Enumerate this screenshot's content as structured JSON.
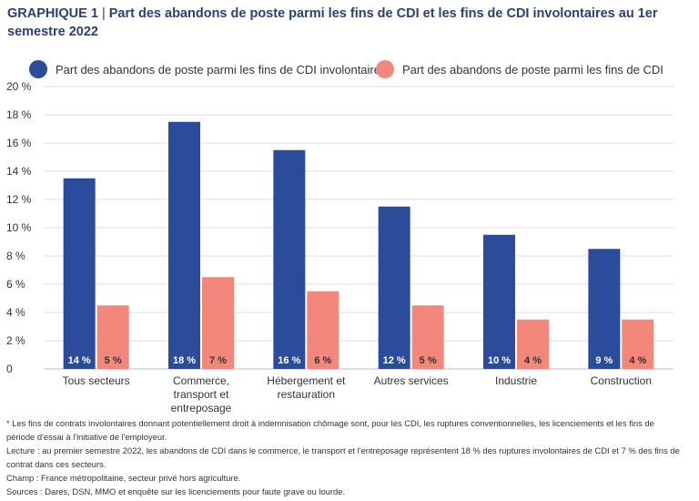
{
  "header": {
    "title_prefix": "GRAPHIQUE 1",
    "title_separator": "|",
    "title_text": "Part des abandons de poste parmi les fins de CDI et les fins de CDI involontaires au 1er semestre 2022"
  },
  "colors": {
    "series_involontaires": "#2b4c9b",
    "series_fins_cdi": "#f4877c",
    "title": "#2b3f73",
    "grid": "#dedede"
  },
  "chart_data": {
    "type": "bar",
    "categories": [
      [
        "Tous secteurs"
      ],
      [
        "Commerce,",
        "transport et",
        "entreposage"
      ],
      [
        "Hébergement et",
        "restauration"
      ],
      [
        "Autres services"
      ],
      [
        "Industrie"
      ],
      [
        "Construction"
      ]
    ],
    "series": [
      {
        "name": "Part des abandons de poste parmi les fins de CDI involontaires*",
        "values": [
          13.5,
          17.5,
          15.5,
          11.5,
          9.5,
          8.5
        ],
        "labels": [
          "14 %",
          "18 %",
          "16 %",
          "12 %",
          "10 %",
          "9 %"
        ]
      },
      {
        "name": "Part des abandons de poste parmi les fins de CDI",
        "values": [
          4.5,
          6.5,
          5.5,
          4.5,
          3.5,
          3.5
        ],
        "labels": [
          "5 %",
          "7 %",
          "6 %",
          "5 %",
          "4 %",
          "4 %"
        ]
      }
    ],
    "yticks": [
      "20 %",
      "18 %",
      "16 %",
      "14 %",
      "12 %",
      "10 %",
      "8 %",
      "6 %",
      "4 %",
      "2 %",
      "0"
    ],
    "ylim": [
      0,
      20
    ],
    "grid": true,
    "legend_position": "top-left"
  },
  "notes": [
    "* Les fins de contrats involontaires donnant potentiellement droit à indemnisation chômage sont, pour les CDI, les ruptures conventionnelles, les licenciements et les fins de période d'essai à l'initiative de l'employeur.",
    "Lecture : au premier semestre 2022, les abandons de CDI dans le commerce, le transport et l'entreposage représentent 18 % des ruptures involontaires de CDI et 7 % des fins de contrat dans ces secteurs.",
    "Champ : France métropolitaine, secteur privé hors agriculture.",
    "Sources : Dares, DSN, MMO et enquête sur les licenciements pour faute grave ou lourde."
  ]
}
